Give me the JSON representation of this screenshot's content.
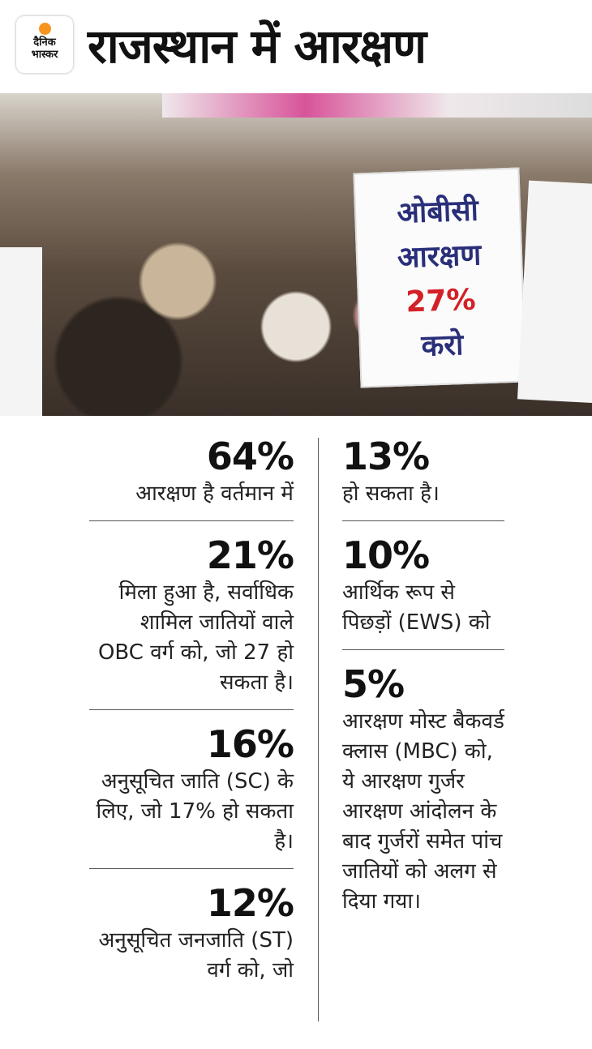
{
  "header": {
    "logo_text": [
      "दैनिक",
      "भास्कर"
    ],
    "title": "राजस्थान में आरक्षण",
    "logo_color": "#f7941d"
  },
  "photo": {
    "sign_lines": [
      "ओबीसी",
      "आरक्षण",
      "27%",
      "करो"
    ]
  },
  "left_items": [
    {
      "pct": "64%",
      "text": "आरक्षण है वर्तमान में"
    },
    {
      "pct": "21%",
      "text": "मिला हुआ है, सर्वाधिक शामिल जातियों वाले OBC वर्ग को, जो 27 हो सकता है।"
    },
    {
      "pct": "16%",
      "text": "अनुसूचित जाति (SC) के लिए, जो 17% हो सकता है।"
    },
    {
      "pct": "12%",
      "text": "अनुसूचित जनजाति (ST) वर्ग को, जो"
    }
  ],
  "right_items": [
    {
      "pct": "13%",
      "text": "हो सकता है।"
    },
    {
      "pct": "10%",
      "text": "आर्थिक रूप से पिछड़ों (EWS) को"
    },
    {
      "pct": "5%",
      "text": "आरक्षण मोस्ट बैकवर्ड क्लास (MBC) को, ये आरक्षण गुर्जर आरक्षण आंदोलन के बाद गुर्जरों समेत पांच जातियों को अलग से दिया गया।"
    }
  ]
}
